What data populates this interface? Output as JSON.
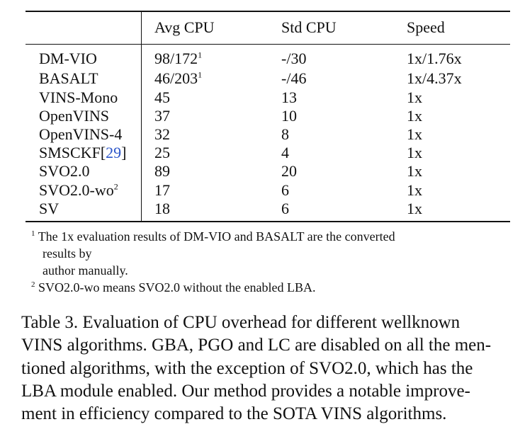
{
  "table": {
    "headers": [
      "",
      "Avg CPU",
      "Std CPU",
      "Speed"
    ],
    "rows": [
      {
        "method": "DM-VIO",
        "avg": "98/172",
        "avg_note": "1",
        "std": "-/30",
        "speed": "1x/1.76x"
      },
      {
        "method": "BASALT",
        "avg": "46/203",
        "avg_note": "1",
        "std": "-/46",
        "speed": "1x/4.37x"
      },
      {
        "method": "VINS-Mono",
        "avg": "45",
        "std": "13",
        "speed": "1x"
      },
      {
        "method": "OpenVINS",
        "avg": "37",
        "std": "10",
        "speed": "1x"
      },
      {
        "method": "OpenVINS-4",
        "avg": "32",
        "std": "8",
        "speed": "1x"
      },
      {
        "method": "SMSCKF",
        "cite_open": "[",
        "cite": "29",
        "cite_close": "]",
        "avg": "25",
        "std": "4",
        "speed": "1x"
      },
      {
        "method": "SVO2.0",
        "avg": "89",
        "std": "20",
        "speed": "1x"
      },
      {
        "method": "SVO2.0-wo",
        "method_note": "2",
        "avg": "17",
        "std": "6",
        "speed": "1x"
      },
      {
        "method": "SV",
        "avg": "18",
        "std": "6",
        "speed": "1x"
      }
    ]
  },
  "footnotes": {
    "n1_marker": "1",
    "n1_line1": "The 1x evaluation results of DM-VIO and BASALT are the converted",
    "n1_line2": "results by",
    "n1_line3": "author manually.",
    "n2_marker": "2",
    "n2_line1": "SVO2.0-wo means SVO2.0 without the enabled LBA."
  },
  "caption": {
    "line1": "Table 3.  Evaluation of CPU overhead for different wellknown",
    "line2": "VINS algorithms. GBA, PGO and LC are disabled on all the men-",
    "line3": "tioned algorithms, with the exception of SVO2.0, which has the",
    "line4": "LBA module enabled.  Our method provides a notable improve-",
    "line5": "ment in efficiency compared to the SOTA VINS algorithms."
  }
}
